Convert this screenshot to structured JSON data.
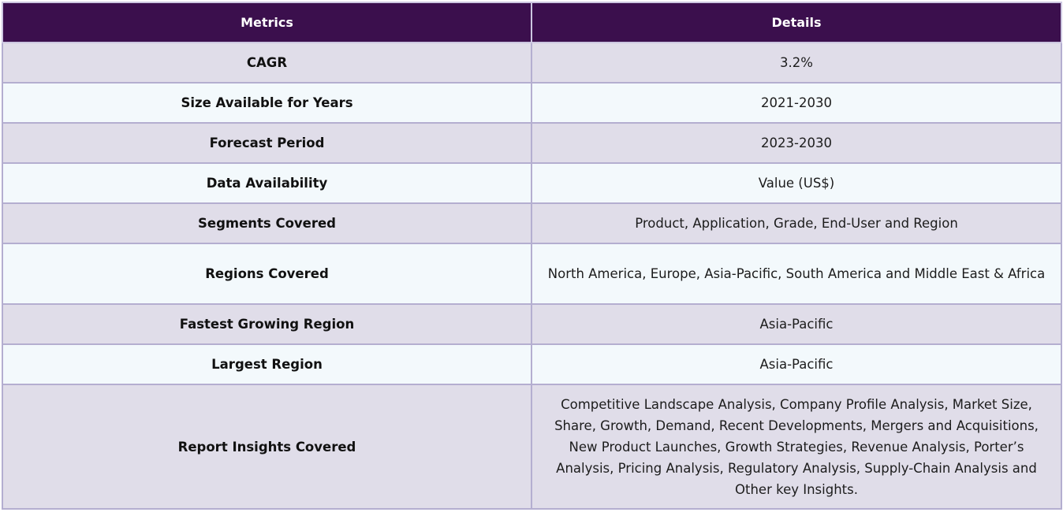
{
  "table": {
    "headers": {
      "metrics": "Metrics",
      "details": "Details"
    },
    "rows": [
      {
        "metric": "CAGR",
        "detail": "3.2%"
      },
      {
        "metric": "Size Available for Years",
        "detail": "2021-2030"
      },
      {
        "metric": "Forecast Period",
        "detail": "2023-2030"
      },
      {
        "metric": "Data Availability",
        "detail": "Value (US$)"
      },
      {
        "metric": "Segments Covered",
        "detail": "Product, Application, Grade, End-User and Region"
      },
      {
        "metric": "Regions Covered",
        "detail": "North America, Europe, Asia-Pacific, South America and Middle East & Africa"
      },
      {
        "metric": "Fastest Growing Region",
        "detail": "Asia-Pacific"
      },
      {
        "metric": "Largest Region",
        "detail": "Asia-Pacific"
      },
      {
        "metric": "Report Insights Covered",
        "detail": "Competitive Landscape Analysis, Company Profile Analysis, Market Size, Share, Growth, Demand, Recent Developments, Mergers and Acquisitions, New Product Launches, Growth Strategies, Revenue Analysis, Porter’s Analysis, Pricing Analysis, Regulatory Analysis, Supply-Chain Analysis and Other key Insights."
      }
    ]
  },
  "colors": {
    "header_bg": "#3b0f4d",
    "odd_row_bg": "#e0dde9",
    "even_row_bg": "#f3f9fc",
    "border": "#b4aed0"
  }
}
